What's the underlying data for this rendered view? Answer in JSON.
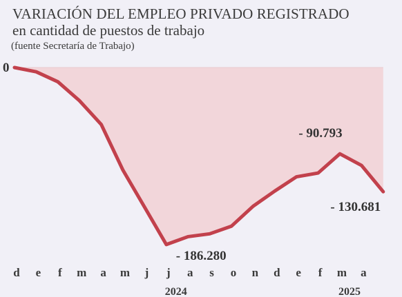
{
  "chart_data": {
    "type": "area",
    "title": "VARIACIÓN DEL EMPLEO PRIVADO REGISTRADO",
    "subtitle": "en cantidad de puestos de trabajo",
    "source": "(fuente Secretaría de Trabajo)",
    "x_ticks": [
      "d",
      "e",
      "f",
      "m",
      "a",
      "m",
      "j",
      "j",
      "a",
      "s",
      "o",
      "n",
      "d",
      "e",
      "f",
      "m",
      "a"
    ],
    "year_labels": [
      {
        "text": "2024",
        "index": 7
      },
      {
        "text": "2025",
        "index": 15
      }
    ],
    "values": [
      0,
      -4500,
      -15000,
      -35000,
      -60000,
      -108000,
      -147000,
      -186280,
      -178000,
      -175000,
      -167000,
      -146000,
      -130000,
      -115000,
      -111000,
      -90793,
      -103000,
      -130681
    ],
    "zero_label": "0",
    "annotations": [
      {
        "text": "- 186.280",
        "index": 7,
        "position": "below-right"
      },
      {
        "text": "- 90.793",
        "index": 15,
        "position": "above"
      },
      {
        "text": "- 130.681",
        "index": 17,
        "position": "below"
      }
    ],
    "ylim": [
      -190000,
      0
    ],
    "colors": {
      "line": "#c2414c",
      "fill": "#f2d6da",
      "background": "#f1f0f7"
    },
    "grid": false
  }
}
